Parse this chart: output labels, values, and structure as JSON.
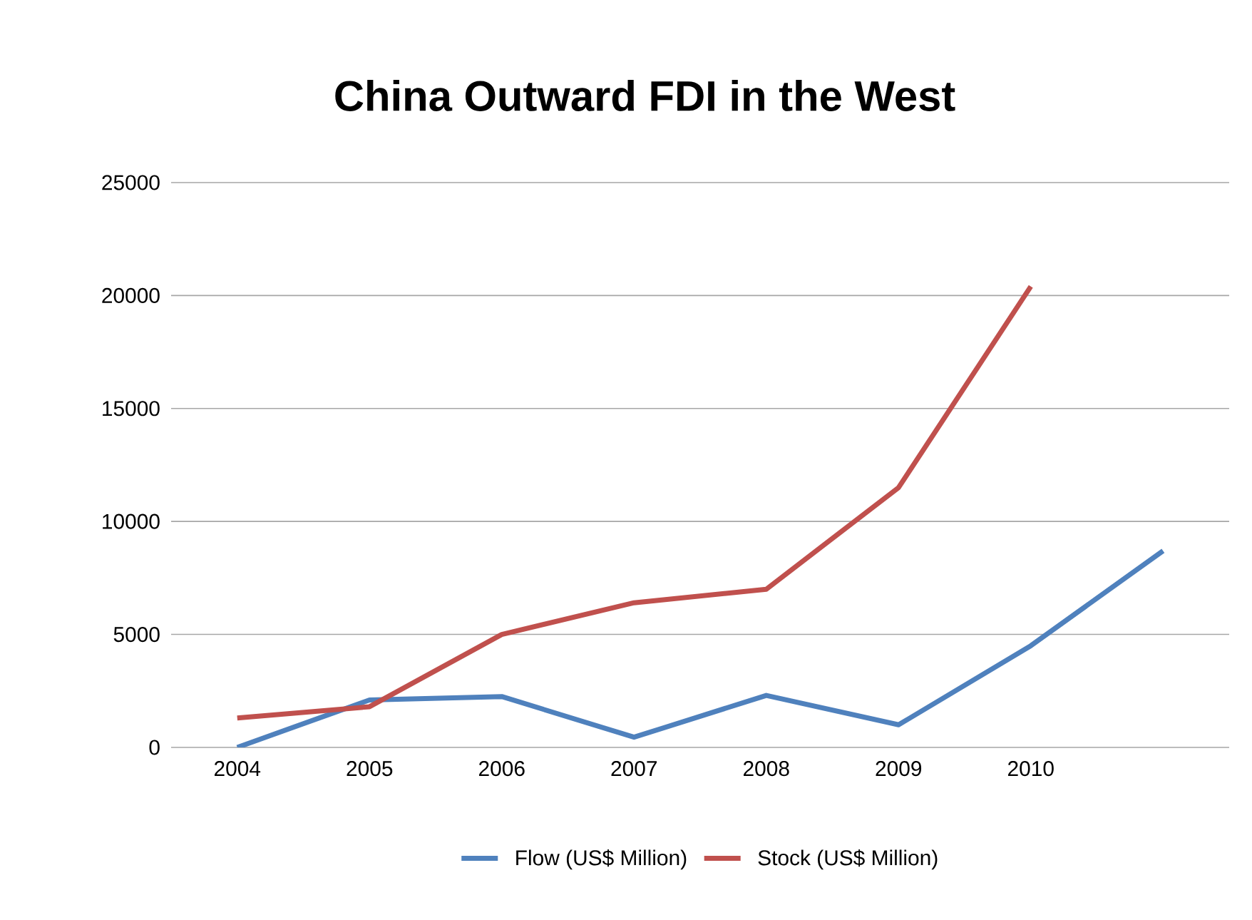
{
  "chart_data": {
    "type": "line",
    "title": "China Outward FDI in the West",
    "categories": [
      "2004",
      "2005",
      "2006",
      "2007",
      "2008",
      "2009",
      "2010",
      null
    ],
    "series": [
      {
        "name": "Flow (US$ Million)",
        "color": "#4f81bd",
        "values": [
          0,
          2100,
          2250,
          450,
          2300,
          1000,
          4500,
          8700
        ]
      },
      {
        "name": "Stock (US$ Million)",
        "color": "#c0504d",
        "values": [
          1300,
          1800,
          5000,
          6400,
          7000,
          11500,
          20400,
          null
        ]
      }
    ],
    "ylim": [
      0,
      25000
    ],
    "yticks": [
      0,
      5000,
      10000,
      15000,
      20000,
      25000
    ],
    "grid": "y",
    "legend": "bottom",
    "marker": "none",
    "line_style": "solid"
  }
}
